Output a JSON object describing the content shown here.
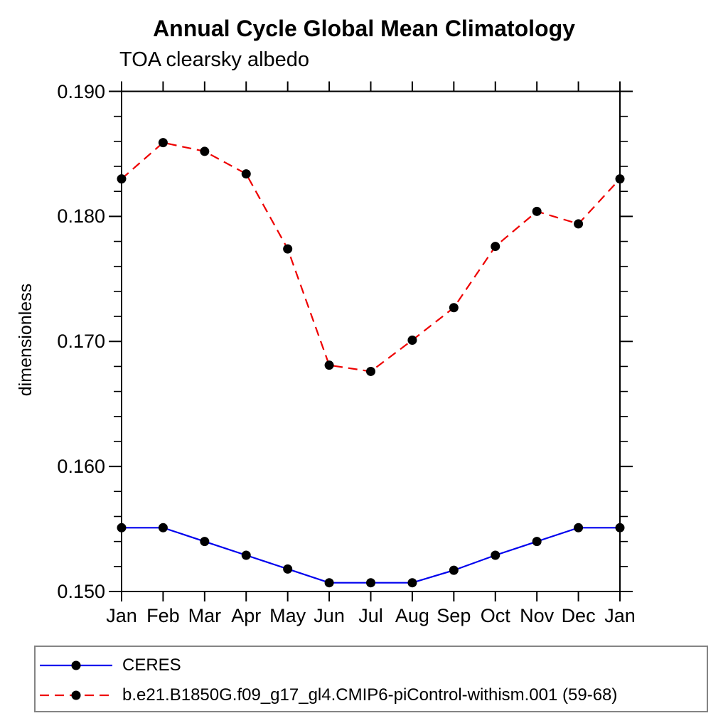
{
  "chart_data": {
    "type": "line",
    "title": "Annual Cycle Global Mean Climatology",
    "subtitle": "TOA clearsky albedo",
    "ylabel": "dimensionless",
    "xlabel": "",
    "x_tick_labels": [
      "Jan",
      "Feb",
      "Mar",
      "Apr",
      "May",
      "Jun",
      "Jul",
      "Aug",
      "Sep",
      "Oct",
      "Nov",
      "Dec",
      "Jan"
    ],
    "ylim": [
      0.15,
      0.19
    ],
    "y_major_ticks": [
      0.19,
      0.18,
      0.17,
      0.16,
      0.15
    ],
    "y_major_tick_labels": [
      "0.190",
      "0.180",
      "0.170",
      "0.160",
      "0.150"
    ],
    "y_minor_step": 0.002,
    "grid": false,
    "legend_position": "bottom-left-box",
    "frame_color": "#000000",
    "marker": "filled-circle",
    "marker_color": "#000000",
    "series": [
      {
        "name": "CERES",
        "color": "#0000ee",
        "style": "solid",
        "values": [
          0.1551,
          0.1551,
          0.154,
          0.1529,
          0.1518,
          0.1507,
          0.1507,
          0.1507,
          0.1517,
          0.1529,
          0.154,
          0.1551,
          0.1551
        ]
      },
      {
        "name": "b.e21.B1850G.f09_g17_gl4.CMIP6-piControl-withism.001 (59-68)",
        "color": "#ee0000",
        "style": "dashed",
        "values": [
          0.183,
          0.1859,
          0.1852,
          0.1834,
          0.1774,
          0.1681,
          0.1676,
          0.1701,
          0.1727,
          0.1776,
          0.1804,
          0.1794,
          0.183
        ]
      }
    ]
  }
}
